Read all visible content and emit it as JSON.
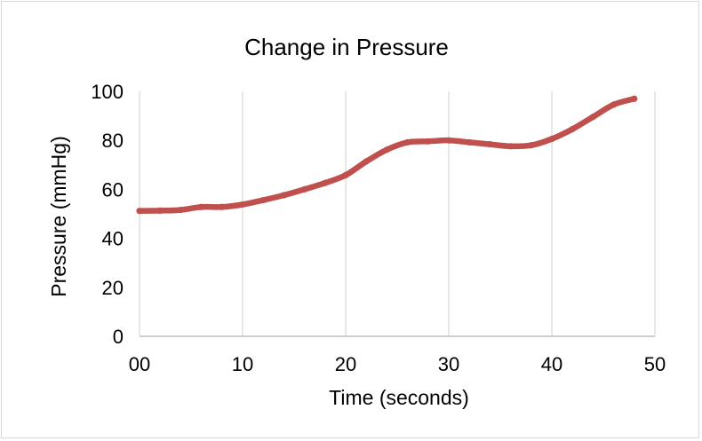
{
  "chart_data": {
    "type": "scatter",
    "title": "Change in Pressure",
    "xlabel": "Time (seconds)",
    "ylabel": "Pressure (mmHg)",
    "xlim": [
      0,
      50
    ],
    "ylim": [
      0,
      100
    ],
    "x_ticks": [
      "00",
      "10",
      "20",
      "30",
      "40",
      "50"
    ],
    "y_ticks": [
      "0",
      "20",
      "40",
      "60",
      "80",
      "100"
    ],
    "grid": {
      "vertical": true,
      "horizontal": false
    },
    "legend": "none",
    "series": [
      {
        "color": "#c0504d",
        "points": [
          [
            0,
            51.2
          ],
          [
            2,
            51.3
          ],
          [
            4,
            51.6
          ],
          [
            6,
            52.8
          ],
          [
            8,
            52.8
          ],
          [
            10,
            53.8
          ],
          [
            12,
            55.6
          ],
          [
            14,
            57.6
          ],
          [
            16,
            60.0
          ],
          [
            18,
            62.6
          ],
          [
            20,
            65.8
          ],
          [
            22,
            71.4
          ],
          [
            24,
            76.2
          ],
          [
            26,
            79.2
          ],
          [
            28,
            79.6
          ],
          [
            30,
            80.0
          ],
          [
            32,
            79.2
          ],
          [
            34,
            78.4
          ],
          [
            36,
            77.6
          ],
          [
            38,
            78.0
          ],
          [
            40,
            80.6
          ],
          [
            42,
            84.6
          ],
          [
            44,
            89.6
          ],
          [
            46,
            94.6
          ],
          [
            48,
            97.0
          ]
        ]
      }
    ]
  }
}
